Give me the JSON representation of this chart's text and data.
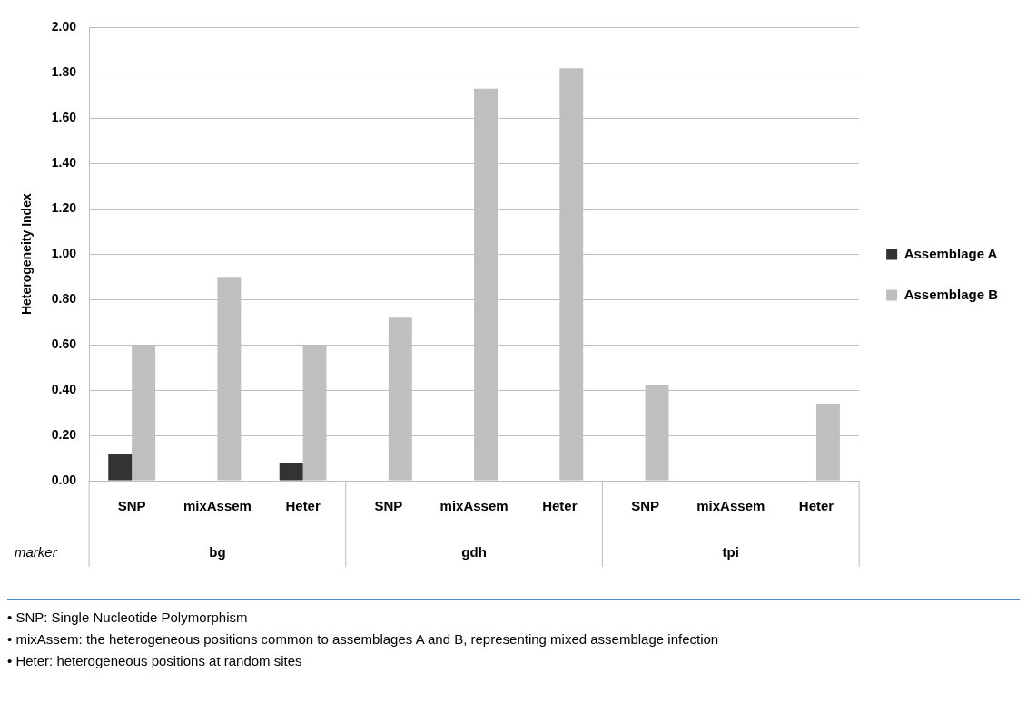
{
  "chart_data": {
    "type": "bar",
    "ylabel": "Heterogeneity Index",
    "categories": [
      "SNP",
      "mixAssem",
      "Heter",
      "SNP",
      "mixAssem",
      "Heter",
      "SNP",
      "mixAssem",
      "Heter"
    ],
    "series": [
      {
        "name": "Assemblage A",
        "color": "#333333",
        "values": [
          0.12,
          0,
          0.08,
          0,
          0,
          0,
          0,
          0,
          0
        ]
      },
      {
        "name": "Assemblage B",
        "color": "#bfbfbf",
        "values": [
          0.6,
          0.9,
          0.6,
          0.72,
          1.73,
          1.82,
          0.42,
          0,
          0.34
        ]
      }
    ],
    "ylim": [
      0,
      2
    ],
    "yticks": [
      {
        "value": 0,
        "label": "0.00"
      },
      {
        "value": 0.2,
        "label": "0.20"
      },
      {
        "value": 0.4,
        "label": "0.40"
      },
      {
        "value": 0.6,
        "label": "0.60"
      },
      {
        "value": 0.8,
        "label": "0.80"
      },
      {
        "value": 1,
        "label": "1.00"
      },
      {
        "value": 1.2,
        "label": "1.20"
      },
      {
        "value": 1.4,
        "label": "1.40"
      },
      {
        "value": 1.6,
        "label": "1.60"
      },
      {
        "value": 1.8,
        "label": "1.80"
      },
      {
        "value": 2,
        "label": "2.00"
      }
    ],
    "grid": "y",
    "legend": "right",
    "annotations": [
      "marker",
      "bg",
      "gdh",
      "tpi",
      "• SNP: Single Nucleotide Polymorphism",
      "• mixAssem: the heterogeneous positions common to assemblages A and B, representing mixed assemblage infection",
      "• Heter: heterogeneous positions at random sites"
    ]
  }
}
